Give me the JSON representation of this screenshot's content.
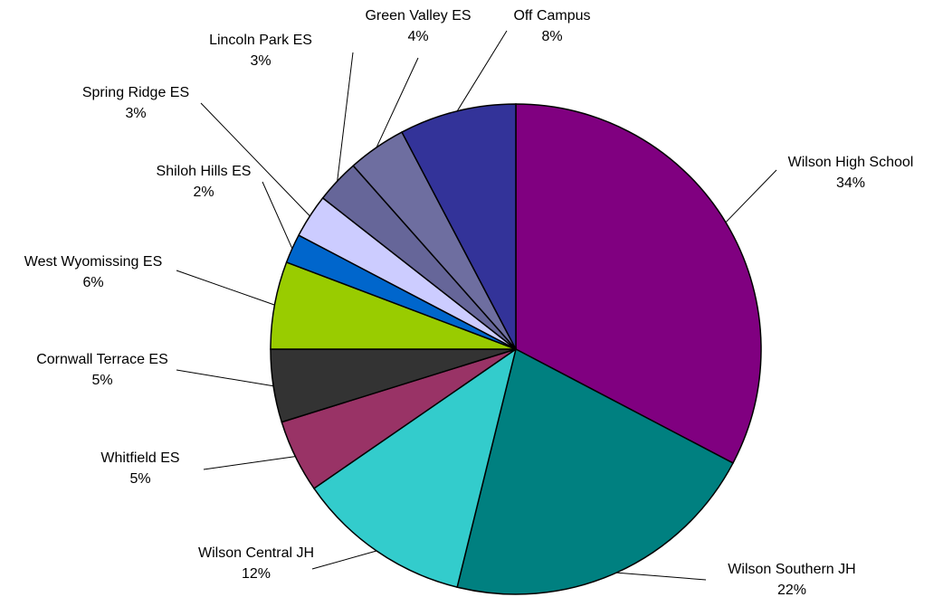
{
  "chart_data": {
    "type": "pie",
    "categories": [
      "Wilson High School",
      "Wilson Southern JH",
      "Wilson Central JH",
      "Whitfield ES",
      "Cornwall Terrace ES",
      "West Wyomissing ES",
      "Shiloh Hills ES",
      "Spring Ridge ES",
      "Lincoln Park ES",
      "Green Valley ES",
      "Off Campus"
    ],
    "values": [
      34,
      22,
      12,
      5,
      5,
      6,
      2,
      3,
      3,
      4,
      8
    ],
    "value_labels": [
      "34%",
      "22%",
      "12%",
      "5%",
      "5%",
      "6%",
      "2%",
      "3%",
      "3%",
      "4%",
      "8%"
    ],
    "colors": [
      "#800080",
      "#008080",
      "#33cccc",
      "#993366",
      "#333333",
      "#99cc00",
      "#0066cc",
      "#ccccff",
      "#666699",
      "#6e6ea0",
      "#333399"
    ]
  }
}
